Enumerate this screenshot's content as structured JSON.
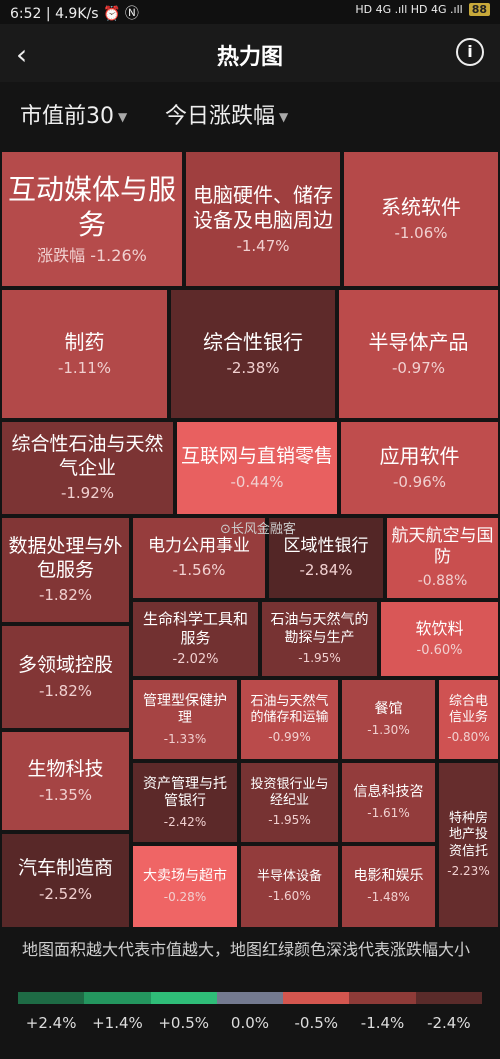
{
  "status": {
    "time": "6:52",
    "speed": "4.9K/s",
    "icons": "⏰ Ⓝ",
    "right": "HD 4G .ıll HD 4G .ıll",
    "battery": "88"
  },
  "header": {
    "title": "热力图",
    "back_icon": "‹",
    "info_icon": "i"
  },
  "filters": {
    "scope": "市值前30",
    "metric": "今日涨跌幅"
  },
  "tiles": [
    {
      "name": "互动媒体与服务",
      "pct": "涨跌幅 -1.26%",
      "color": "#b54b4b"
    },
    {
      "name": "电脑硬件、储存设备及电脑周边",
      "pct": "-1.47%",
      "color": "#9f3f3f"
    },
    {
      "name": "系统软件",
      "pct": "-1.06%",
      "color": "#b54949"
    },
    {
      "name": "制药",
      "pct": "-1.11%",
      "color": "#b24949"
    },
    {
      "name": "综合性银行",
      "pct": "-2.38%",
      "color": "#5e2a2a"
    },
    {
      "name": "半导体产品",
      "pct": "-0.97%",
      "color": "#bb4b4b"
    },
    {
      "name": "综合性石油与天然气企业",
      "pct": "-1.92%",
      "color": "#7c3434"
    },
    {
      "name": "互联网与直销零售",
      "pct": "-0.44%",
      "color": "#e86060"
    },
    {
      "name": "应用软件",
      "pct": "-0.96%",
      "color": "#bf4d4d"
    },
    {
      "name": "数据处理与外包服务",
      "pct": "-1.82%",
      "color": "#823636"
    },
    {
      "name": "电力公用事业",
      "pct": "-1.56%",
      "color": "#963d3d"
    },
    {
      "name": "区域性银行",
      "pct": "-2.84%",
      "color": "#532626"
    },
    {
      "name": "航天航空与国防",
      "pct": "-0.88%",
      "color": "#c94f4f"
    },
    {
      "name": "生命科学工具和服务",
      "pct": "-2.02%",
      "color": "#723131"
    },
    {
      "name": "石油与天然气的勘探与生产",
      "pct": "-1.95%",
      "color": "#773333"
    },
    {
      "name": "软饮料",
      "pct": "-0.60%",
      "color": "#d95757"
    },
    {
      "name": "多领域控股",
      "pct": "-1.82%",
      "color": "#823636"
    },
    {
      "name": "管理型保健护理",
      "pct": "-1.33%",
      "color": "#a64444"
    },
    {
      "name": "石油与天然气的储存和运输",
      "pct": "-0.99%",
      "color": "#ba4b4b"
    },
    {
      "name": "餐馆",
      "pct": "-1.30%",
      "color": "#a94545"
    },
    {
      "name": "综合电信业务",
      "pct": "-0.80%",
      "color": "#cf5252"
    },
    {
      "name": "生物科技",
      "pct": "-1.35%",
      "color": "#a54444"
    },
    {
      "name": "资产管理与托管银行",
      "pct": "-2.42%",
      "color": "#5c2929"
    },
    {
      "name": "投资银行业与经纪业",
      "pct": "-1.95%",
      "color": "#773333"
    },
    {
      "name": "信息科技咨",
      "pct": "-1.61%",
      "color": "#933c3c"
    },
    {
      "name": "特种房地产投资信托",
      "pct": "-2.23%",
      "color": "#662d2d"
    },
    {
      "name": "汽车制造商",
      "pct": "-2.52%",
      "color": "#582828"
    },
    {
      "name": "大卖场与超市",
      "pct": "-0.28%",
      "color": "#ef6565"
    },
    {
      "name": "半导体设备",
      "pct": "-1.60%",
      "color": "#933c3c"
    },
    {
      "name": "电影和娱乐",
      "pct": "-1.48%",
      "color": "#9c3f3f"
    }
  ],
  "watermark": "⊙长风金融客",
  "description": "地图面积越大代表市值越大，地图红绿颜色深浅代表涨跌幅大小",
  "legend": {
    "colors": [
      "#1e6b45",
      "#24965f",
      "#2fbd78",
      "#747a90",
      "#d4564f",
      "#8e3b38",
      "#5a2b2a"
    ],
    "labels": [
      "+2.4%",
      "+1.4%",
      "+0.5%",
      "0.0%",
      "-0.5%",
      "-1.4%",
      "-2.4%"
    ]
  }
}
